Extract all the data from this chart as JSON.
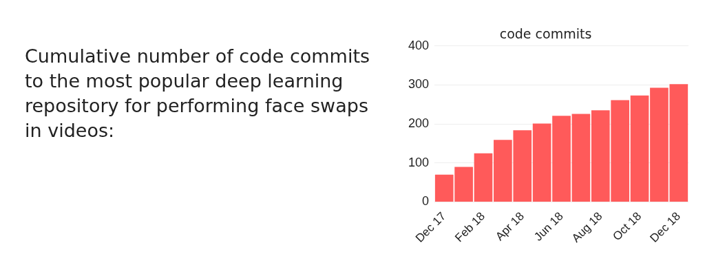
{
  "chart_data": {
    "type": "bar",
    "title": "code commits",
    "categories": [
      "Dec 17",
      null,
      "Feb 18",
      null,
      "Apr 18",
      null,
      "Jun 18",
      null,
      "Aug 18",
      null,
      "Oct 18",
      null,
      "Dec 18"
    ],
    "values": [
      70,
      90,
      125,
      159,
      184,
      201,
      221,
      226,
      235,
      261,
      273,
      293,
      302
    ],
    "color": "#ff5a5a",
    "ylim": [
      0,
      400
    ],
    "yticks": [
      0,
      100,
      200,
      300,
      400
    ],
    "grid": "y",
    "annotations": [
      "Cumulative number of code commits to the most popular deep learning repository for performing face swaps in videos:"
    ]
  }
}
